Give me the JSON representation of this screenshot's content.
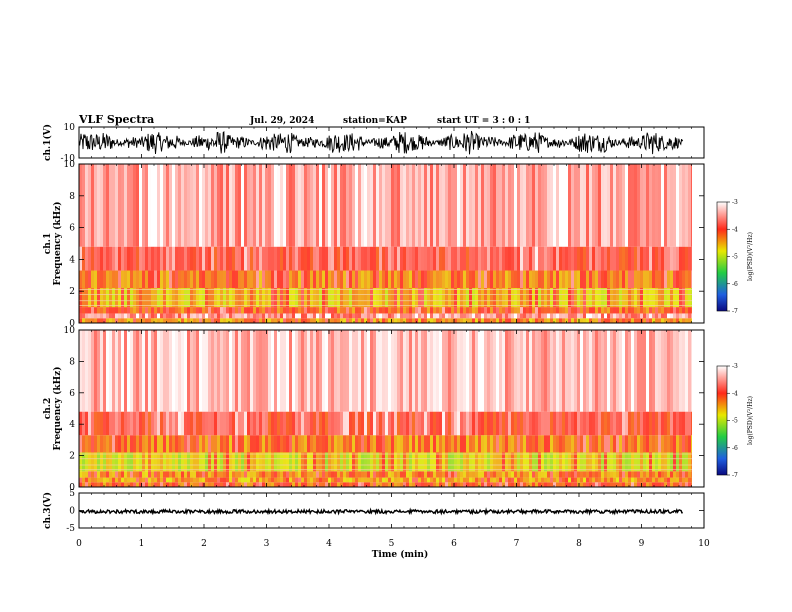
{
  "header": {
    "title": "VLF Spectra",
    "date": "Jul. 29, 2024",
    "station": "station=KAP",
    "start_ut": "start UT = 3 : 0 : 1"
  },
  "colors": {
    "low": "#0a0a80",
    "mid_low": "#1f5fe0",
    "mid": "#22cc44",
    "mid_high": "#e8e800",
    "high": "#ff2a1a",
    "max": "#ffffff",
    "waveform": "#000000"
  },
  "chart_data": [
    {
      "type": "line",
      "name": "waveform-ch1",
      "ylabel": "ch.1(V)",
      "ylim": [
        -10,
        10
      ],
      "yticks": [
        "10",
        "-10"
      ],
      "xlim": [
        0,
        10
      ],
      "description_values": "noisy signal oscillating roughly between -9 and 9 V",
      "amplitude": 9
    },
    {
      "type": "heatmap",
      "name": "spectrogram-ch1",
      "ylabel": "ch.1\nFrequency (kHz)",
      "ylim": [
        0,
        10
      ],
      "yticks": [
        "0",
        "2",
        "4",
        "6",
        "8",
        "10"
      ],
      "xlim": [
        0,
        9.85
      ],
      "colorbar": {
        "label": "log(PSD)(V²/Hz)",
        "ticks": [
          "-3",
          "-4",
          "-5",
          "-6",
          "-7"
        ],
        "range": [
          -7,
          -3
        ]
      },
      "bands": [
        {
          "from_khz": 0,
          "to_khz": 0.3,
          "level": -4.4
        },
        {
          "from_khz": 0.3,
          "to_khz": 0.6,
          "level": -3.6
        },
        {
          "from_khz": 0.6,
          "to_khz": 1.0,
          "level": -4.2
        },
        {
          "from_khz": 1.0,
          "to_khz": 2.2,
          "level": -4.6
        },
        {
          "from_khz": 2.2,
          "to_khz": 3.3,
          "level": -4.3
        },
        {
          "from_khz": 3.3,
          "to_khz": 4.8,
          "level": -3.9
        },
        {
          "from_khz": 4.8,
          "to_khz": 10,
          "level": -3.5
        }
      ]
    },
    {
      "type": "heatmap",
      "name": "spectrogram-ch2",
      "ylabel": "ch.2\nFrequency (kHz)",
      "ylim": [
        0,
        10
      ],
      "yticks": [
        "0",
        "2",
        "4",
        "6",
        "8",
        "10"
      ],
      "xlim": [
        0,
        9.85
      ],
      "colorbar": {
        "label": "log(PSD)(V²/Hz)",
        "ticks": [
          "-3",
          "-4",
          "-5",
          "-6",
          "-7"
        ],
        "range": [
          -7,
          -3
        ]
      },
      "bands": [
        {
          "from_khz": 0,
          "to_khz": 0.3,
          "level": -4.2
        },
        {
          "from_khz": 0.3,
          "to_khz": 0.6,
          "level": -4.5
        },
        {
          "from_khz": 0.6,
          "to_khz": 1.0,
          "level": -4.4
        },
        {
          "from_khz": 1.0,
          "to_khz": 2.2,
          "level": -4.8
        },
        {
          "from_khz": 2.2,
          "to_khz": 3.3,
          "level": -4.3
        },
        {
          "from_khz": 3.3,
          "to_khz": 4.8,
          "level": -3.9
        },
        {
          "from_khz": 4.8,
          "to_khz": 10,
          "level": -3.4
        }
      ]
    },
    {
      "type": "line",
      "name": "waveform-ch3",
      "ylabel": "ch.3(V)",
      "ylim": [
        -5,
        5
      ],
      "yticks": [
        "5",
        "0",
        "-5"
      ],
      "xlim": [
        0,
        10
      ],
      "amplitude": 0.5,
      "offset": -0.3
    }
  ],
  "xaxis": {
    "label": "Time (min)",
    "ticks": [
      "0",
      "1",
      "2",
      "3",
      "4",
      "5",
      "6",
      "7",
      "8",
      "9",
      "10"
    ],
    "range": [
      0,
      10
    ]
  }
}
